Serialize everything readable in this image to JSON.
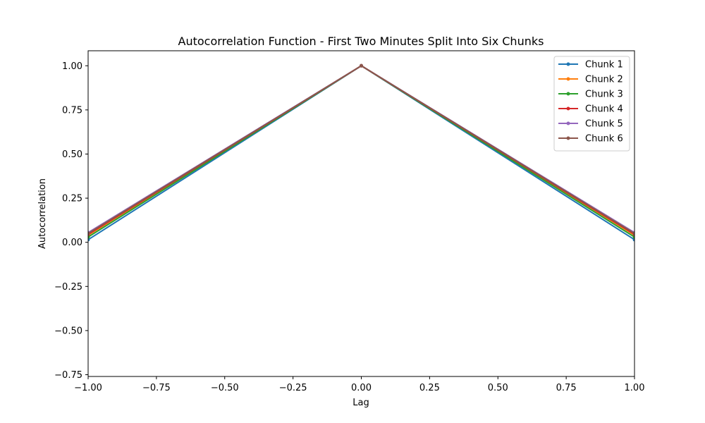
{
  "chart_data": {
    "type": "line",
    "title": "Autocorrelation Function - First Two Minutes Split Into Six Chunks",
    "xlabel": "Lag",
    "ylabel": "Autocorrelation",
    "xlim": [
      -1.0,
      1.0
    ],
    "ylim": [
      -0.76,
      1.085
    ],
    "xticks": [
      -1.0,
      -0.75,
      -0.5,
      -0.25,
      0.0,
      0.25,
      0.5,
      0.75,
      1.0
    ],
    "xtick_labels": [
      "−1.00",
      "−0.75",
      "−0.50",
      "−0.25",
      "0.00",
      "0.25",
      "0.50",
      "0.75",
      "1.00"
    ],
    "yticks": [
      -0.75,
      -0.5,
      -0.25,
      0.0,
      0.25,
      0.5,
      0.75,
      1.0
    ],
    "ytick_labels": [
      "−0.75",
      "−0.50",
      "−0.25",
      "0.00",
      "0.25",
      "0.50",
      "0.75",
      "1.00"
    ],
    "x": [
      -1,
      0,
      1
    ],
    "grid": false,
    "legend_position": "top-right",
    "series": [
      {
        "name": "Chunk 1",
        "color": "#1f77b4",
        "values": [
          0.015,
          1.0,
          0.015
        ]
      },
      {
        "name": "Chunk 2",
        "color": "#ff7f0e",
        "values": [
          0.04,
          1.0,
          0.04
        ]
      },
      {
        "name": "Chunk 3",
        "color": "#2ca02c",
        "values": [
          0.03,
          1.0,
          0.03
        ]
      },
      {
        "name": "Chunk 4",
        "color": "#d62728",
        "values": [
          0.045,
          1.0,
          0.045
        ]
      },
      {
        "name": "Chunk 5",
        "color": "#9467bd",
        "values": [
          0.055,
          1.0,
          0.055
        ]
      },
      {
        "name": "Chunk 6",
        "color": "#8c564b",
        "values": [
          0.05,
          1.0,
          0.05
        ]
      }
    ]
  }
}
